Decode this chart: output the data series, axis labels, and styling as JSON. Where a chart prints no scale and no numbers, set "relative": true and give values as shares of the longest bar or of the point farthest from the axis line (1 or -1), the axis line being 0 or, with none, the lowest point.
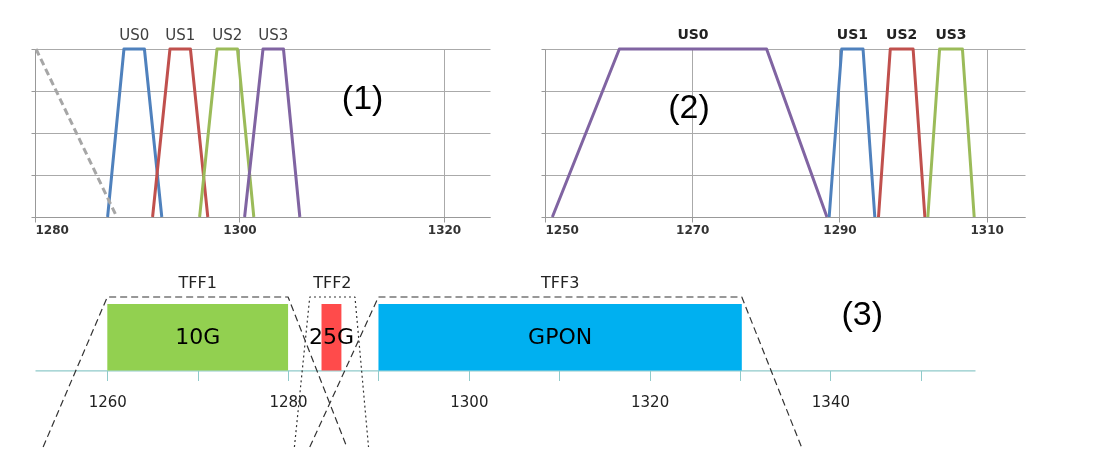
{
  "chart_data": [
    {
      "type": "line",
      "relative": true,
      "xlim": [
        1280,
        1324.5
      ],
      "xticks": [
        1280,
        1300,
        1320
      ],
      "tick_labels": "x",
      "grid": true,
      "annotations": [
        "(1)"
      ],
      "series": [
        {
          "name": "US0",
          "color": "#4f81bd",
          "x": [
            1287.1,
            1288.7,
            1290.7,
            1292.4
          ],
          "values": [
            0,
            1,
            1,
            0
          ]
        },
        {
          "name": "US1",
          "color": "#c0504d",
          "x": [
            1291.5,
            1293.2,
            1295.2,
            1296.9
          ],
          "values": [
            0,
            1,
            1,
            0
          ]
        },
        {
          "name": "US2",
          "color": "#9bbb59",
          "x": [
            1296.1,
            1297.8,
            1299.8,
            1301.4
          ],
          "values": [
            0,
            1,
            1,
            0
          ]
        },
        {
          "name": "US3",
          "color": "#8064a2",
          "x": [
            1300.5,
            1302.3,
            1304.3,
            1305.9
          ],
          "values": [
            0,
            1,
            1,
            0
          ]
        },
        {
          "color": "#a6a6a6",
          "line_style": "dashed",
          "x": [
            1280.1,
            1288.0
          ],
          "values": [
            1,
            0
          ]
        }
      ]
    },
    {
      "type": "line",
      "relative": true,
      "xlim": [
        1250,
        1315.2
      ],
      "xticks": [
        1250,
        1270,
        1290,
        1310
      ],
      "tick_labels": "x",
      "grid": true,
      "annotations": [
        "(2)"
      ],
      "series": [
        {
          "name": "US0",
          "color": "#8064a2",
          "x": [
            1251.0,
            1260.1,
            1280.1,
            1288.3
          ],
          "values": [
            0,
            1,
            1,
            0
          ]
        },
        {
          "name": "US1",
          "color": "#4f81bd",
          "x": [
            1288.6,
            1290.3,
            1293.2,
            1294.8
          ],
          "values": [
            0,
            1,
            1,
            0
          ]
        },
        {
          "name": "US2",
          "color": "#c0504d",
          "x": [
            1295.3,
            1296.9,
            1300.0,
            1301.6
          ],
          "values": [
            0,
            1,
            1,
            0
          ]
        },
        {
          "name": "US3",
          "color": "#9bbb59",
          "x": [
            1302.0,
            1303.6,
            1306.7,
            1308.3
          ],
          "values": [
            0,
            1,
            1,
            0
          ]
        }
      ]
    },
    {
      "type": "line",
      "relative": true,
      "xlim": [
        1252,
        1356
      ],
      "xticks": [
        1260,
        {
          "value": 1270,
          "label": null
        },
        1280,
        {
          "value": 1290,
          "label": null
        },
        1300,
        {
          "value": 1310,
          "label": null
        },
        1320,
        {
          "value": 1330,
          "label": null
        },
        1340,
        {
          "value": 1350,
          "label": null
        }
      ],
      "tick_labels": "x",
      "grid": false,
      "annotations": [
        "(3)"
      ],
      "series": [
        {
          "name": "10G",
          "type": "area",
          "color": "#92d050",
          "x": [
            1260,
            1280
          ],
          "values": [
            0.87,
            0.87
          ]
        },
        {
          "name": "25G",
          "type": "area",
          "color": "#ff4b4b",
          "x": [
            1283.7,
            1285.9
          ],
          "values": [
            0.87,
            0.87
          ]
        },
        {
          "name": "GPON",
          "type": "area",
          "color": "#00b0f0",
          "x": [
            1290,
            1330.2
          ],
          "values": [
            0.87,
            0.87
          ]
        },
        {
          "name": "TFF1",
          "color": "#333333",
          "line_style": "dashed",
          "x": [
            1252.9,
            1260,
            1280,
            1286.5
          ],
          "values": [
            -1,
            0.96,
            0.96,
            -1
          ]
        },
        {
          "name": "TFF2",
          "color": "#333333",
          "line_style": "dotted",
          "x": [
            1280.7,
            1282.4,
            1287.4,
            1288.9
          ],
          "values": [
            -1,
            0.96,
            0.96,
            -1
          ]
        },
        {
          "name": "TFF3",
          "color": "#333333",
          "line_style": "dashed",
          "x": [
            1282.4,
            1290,
            1330.2,
            1336.8
          ],
          "values": [
            -1,
            0.96,
            0.96,
            -1
          ]
        }
      ]
    }
  ]
}
